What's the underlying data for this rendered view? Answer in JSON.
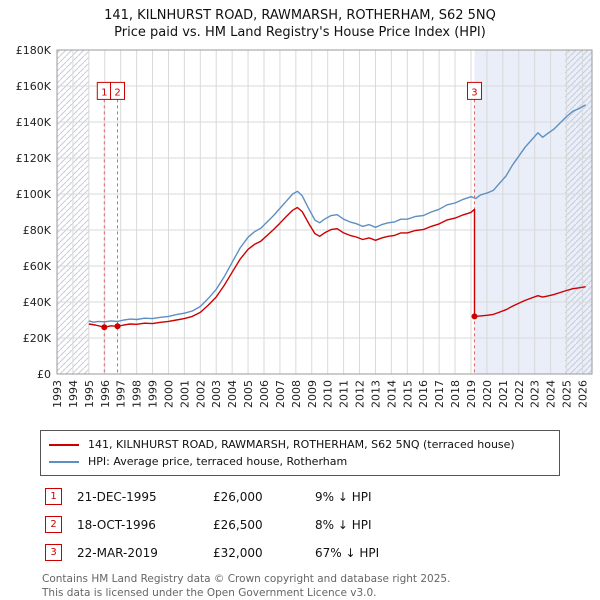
{
  "title": {
    "line1": "141, KILNHURST ROAD, RAWMARSH, ROTHERHAM, S62 5NQ",
    "line2": "Price paid vs. HM Land Registry's House Price Index (HPI)"
  },
  "chart_data": {
    "type": "line",
    "x_range": [
      1993,
      2026.6
    ],
    "y_range": [
      0,
      180000
    ],
    "x_ticks": [
      1993,
      1994,
      1995,
      1996,
      1997,
      1998,
      1999,
      2000,
      2001,
      2002,
      2003,
      2004,
      2005,
      2006,
      2007,
      2008,
      2009,
      2010,
      2011,
      2012,
      2013,
      2014,
      2015,
      2016,
      2017,
      2018,
      2019,
      2020,
      2021,
      2022,
      2023,
      2024,
      2025,
      2026
    ],
    "y_ticks": [
      0,
      20000,
      40000,
      60000,
      80000,
      100000,
      120000,
      140000,
      160000,
      180000
    ],
    "y_tick_labels": [
      "£0",
      "£20K",
      "£40K",
      "£60K",
      "£80K",
      "£100K",
      "£120K",
      "£140K",
      "£160K",
      "£180K"
    ],
    "marker_label_y": 157000,
    "shaded_from": 2019.22,
    "hatch_left_to": 1995.0,
    "hatch_right_from": 2024.9,
    "colors": {
      "shade": "#e9eef9",
      "hatch": "#c6cdda",
      "sale_line": "#e06666",
      "grid": "#d9d9d9",
      "border": "#999999"
    },
    "series": [
      {
        "name": "141, KILNHURST ROAD, RAWMARSH, ROTHERHAM, S62 5NQ (terraced house)",
        "color": "#cc0000",
        "points": [
          [
            1995.0,
            27800
          ],
          [
            1995.4,
            27200
          ],
          [
            1995.97,
            26000
          ],
          [
            1996.4,
            26800
          ],
          [
            1996.8,
            26500
          ],
          [
            1997.2,
            27200
          ],
          [
            1997.6,
            27800
          ],
          [
            1998.0,
            27600
          ],
          [
            1998.5,
            28200
          ],
          [
            1999.0,
            28000
          ],
          [
            1999.5,
            28700
          ],
          [
            2000.0,
            29200
          ],
          [
            2000.5,
            30000
          ],
          [
            2001.0,
            30800
          ],
          [
            2001.5,
            32000
          ],
          [
            2002.0,
            34200
          ],
          [
            2002.5,
            38300
          ],
          [
            2003.0,
            42800
          ],
          [
            2003.5,
            49200
          ],
          [
            2004.0,
            56500
          ],
          [
            2004.5,
            63800
          ],
          [
            2005.0,
            69300
          ],
          [
            2005.4,
            72000
          ],
          [
            2005.8,
            73800
          ],
          [
            2006.2,
            77000
          ],
          [
            2006.6,
            80200
          ],
          [
            2007.0,
            83800
          ],
          [
            2007.4,
            87500
          ],
          [
            2007.8,
            91000
          ],
          [
            2008.1,
            92500
          ],
          [
            2008.4,
            90200
          ],
          [
            2008.8,
            83800
          ],
          [
            2009.2,
            78000
          ],
          [
            2009.5,
            76500
          ],
          [
            2009.8,
            78400
          ],
          [
            2010.2,
            80200
          ],
          [
            2010.6,
            80700
          ],
          [
            2011.0,
            78400
          ],
          [
            2011.4,
            77000
          ],
          [
            2011.8,
            76100
          ],
          [
            2012.2,
            74700
          ],
          [
            2012.6,
            75600
          ],
          [
            2013.0,
            74300
          ],
          [
            2013.4,
            75600
          ],
          [
            2013.8,
            76500
          ],
          [
            2014.2,
            77000
          ],
          [
            2014.6,
            78400
          ],
          [
            2015.0,
            78400
          ],
          [
            2015.5,
            79700
          ],
          [
            2016.0,
            80200
          ],
          [
            2016.5,
            82000
          ],
          [
            2017.0,
            83400
          ],
          [
            2017.5,
            85600
          ],
          [
            2018.0,
            86600
          ],
          [
            2018.5,
            88400
          ],
          [
            2019.0,
            89800
          ],
          [
            2019.22,
            91500
          ],
          [
            2019.22,
            32000
          ],
          [
            2019.6,
            32300
          ],
          [
            2020.0,
            32600
          ],
          [
            2020.4,
            33100
          ],
          [
            2020.8,
            34400
          ],
          [
            2021.2,
            35700
          ],
          [
            2021.6,
            37600
          ],
          [
            2022.0,
            39300
          ],
          [
            2022.4,
            40900
          ],
          [
            2022.8,
            42200
          ],
          [
            2023.2,
            43500
          ],
          [
            2023.5,
            42700
          ],
          [
            2023.8,
            43300
          ],
          [
            2024.2,
            44100
          ],
          [
            2024.6,
            45300
          ],
          [
            2025.0,
            46400
          ],
          [
            2025.4,
            47400
          ],
          [
            2025.8,
            47900
          ],
          [
            2026.2,
            48500
          ]
        ]
      },
      {
        "name": "HPI: Average price, terraced house, Rotherham",
        "color": "#5e8fc2",
        "points": [
          [
            1995.0,
            29500
          ],
          [
            1995.3,
            28800
          ],
          [
            1995.6,
            29200
          ],
          [
            1996.0,
            29000
          ],
          [
            1996.4,
            29500
          ],
          [
            1996.8,
            29200
          ],
          [
            1997.2,
            30000
          ],
          [
            1997.6,
            30500
          ],
          [
            1998.0,
            30300
          ],
          [
            1998.5,
            31000
          ],
          [
            1999.0,
            30800
          ],
          [
            1999.5,
            31500
          ],
          [
            2000.0,
            32000
          ],
          [
            2000.5,
            33000
          ],
          [
            2001.0,
            33800
          ],
          [
            2001.5,
            35000
          ],
          [
            2002.0,
            37500
          ],
          [
            2002.5,
            42000
          ],
          [
            2003.0,
            47000
          ],
          [
            2003.5,
            54000
          ],
          [
            2004.0,
            62000
          ],
          [
            2004.5,
            70000
          ],
          [
            2005.0,
            76000
          ],
          [
            2005.4,
            79000
          ],
          [
            2005.8,
            81000
          ],
          [
            2006.2,
            84500
          ],
          [
            2006.6,
            88000
          ],
          [
            2007.0,
            92000
          ],
          [
            2007.4,
            96000
          ],
          [
            2007.8,
            100000
          ],
          [
            2008.1,
            101500
          ],
          [
            2008.4,
            99000
          ],
          [
            2008.8,
            92000
          ],
          [
            2009.2,
            85500
          ],
          [
            2009.5,
            84000
          ],
          [
            2009.8,
            86000
          ],
          [
            2010.2,
            88000
          ],
          [
            2010.6,
            88500
          ],
          [
            2011.0,
            86000
          ],
          [
            2011.4,
            84500
          ],
          [
            2011.8,
            83500
          ],
          [
            2012.2,
            82000
          ],
          [
            2012.6,
            83000
          ],
          [
            2013.0,
            81500
          ],
          [
            2013.4,
            83000
          ],
          [
            2013.8,
            84000
          ],
          [
            2014.2,
            84500
          ],
          [
            2014.6,
            86000
          ],
          [
            2015.0,
            86000
          ],
          [
            2015.5,
            87500
          ],
          [
            2016.0,
            88000
          ],
          [
            2016.5,
            90000
          ],
          [
            2017.0,
            91500
          ],
          [
            2017.5,
            94000
          ],
          [
            2018.0,
            95000
          ],
          [
            2018.5,
            97000
          ],
          [
            2019.0,
            98500
          ],
          [
            2019.3,
            97500
          ],
          [
            2019.6,
            99500
          ],
          [
            2020.0,
            100500
          ],
          [
            2020.4,
            102000
          ],
          [
            2020.8,
            106000
          ],
          [
            2021.2,
            110000
          ],
          [
            2021.6,
            116000
          ],
          [
            2022.0,
            121000
          ],
          [
            2022.4,
            126000
          ],
          [
            2022.8,
            130000
          ],
          [
            2023.2,
            134000
          ],
          [
            2023.5,
            131500
          ],
          [
            2023.8,
            133500
          ],
          [
            2024.2,
            136000
          ],
          [
            2024.6,
            139500
          ],
          [
            2025.0,
            143000
          ],
          [
            2025.4,
            146000
          ],
          [
            2025.8,
            147500
          ],
          [
            2026.2,
            149500
          ]
        ]
      }
    ],
    "sales": [
      {
        "label": "1",
        "x": 1995.97,
        "price": 26000
      },
      {
        "label": "2",
        "x": 1996.8,
        "price": 26500
      },
      {
        "label": "3",
        "x": 2019.22,
        "price": 32000
      }
    ]
  },
  "legend": {
    "items": [
      {
        "label": "141, KILNHURST ROAD, RAWMARSH, ROTHERHAM, S62 5NQ (terraced house)"
      },
      {
        "label": "HPI: Average price, terraced house, Rotherham"
      }
    ]
  },
  "transactions": [
    {
      "num": "1",
      "date": "21-DEC-1995",
      "price": "£26,000",
      "hpi": "9% ↓ HPI"
    },
    {
      "num": "2",
      "date": "18-OCT-1996",
      "price": "£26,500",
      "hpi": "8% ↓ HPI"
    },
    {
      "num": "3",
      "date": "22-MAR-2019",
      "price": "£32,000",
      "hpi": "67% ↓ HPI"
    }
  ],
  "footer": {
    "line1": "Contains HM Land Registry data © Crown copyright and database right 2025.",
    "line2": "This data is licensed under the Open Government Licence v3.0."
  }
}
